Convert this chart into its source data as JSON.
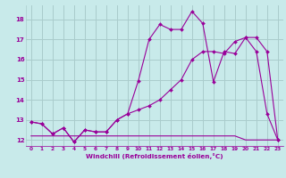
{
  "bg_color": "#c8eaea",
  "grid_color": "#aacccc",
  "line_color": "#990099",
  "xlabel": "Windchill (Refroidissement éolien,°C)",
  "xlim": [
    -0.5,
    23.5
  ],
  "ylim": [
    11.7,
    18.7
  ],
  "yticks": [
    12,
    13,
    14,
    15,
    16,
    17,
    18
  ],
  "xticks": [
    0,
    1,
    2,
    3,
    4,
    5,
    6,
    7,
    8,
    9,
    10,
    11,
    12,
    13,
    14,
    15,
    16,
    17,
    18,
    19,
    20,
    21,
    22,
    23
  ],
  "series1_x": [
    0,
    1,
    2,
    3,
    4,
    5,
    6,
    7,
    8,
    9,
    10,
    11,
    12,
    13,
    14,
    15,
    16,
    17,
    18,
    19,
    20,
    21,
    22,
    23
  ],
  "series1_y": [
    12.9,
    12.8,
    12.3,
    12.6,
    11.9,
    12.5,
    12.4,
    12.4,
    13.0,
    13.3,
    14.95,
    17.0,
    17.75,
    17.5,
    17.5,
    18.4,
    17.8,
    14.9,
    16.4,
    16.3,
    17.1,
    16.4,
    13.3,
    12.0
  ],
  "series2_x": [
    0,
    1,
    2,
    3,
    4,
    5,
    6,
    7,
    8,
    9,
    10,
    11,
    12,
    13,
    14,
    15,
    16,
    17,
    18,
    19,
    20,
    21,
    22,
    23
  ],
  "series2_y": [
    12.9,
    12.8,
    12.3,
    12.6,
    11.9,
    12.5,
    12.4,
    12.4,
    13.0,
    13.3,
    13.5,
    13.7,
    14.0,
    14.5,
    15.0,
    16.0,
    16.4,
    16.4,
    16.3,
    16.9,
    17.1,
    17.1,
    16.4,
    12.0
  ],
  "series3_x": [
    0,
    1,
    2,
    3,
    4,
    5,
    6,
    7,
    8,
    9,
    10,
    11,
    12,
    13,
    14,
    15,
    16,
    17,
    18,
    19,
    20,
    21,
    22,
    23
  ],
  "series3_y": [
    12.2,
    12.2,
    12.2,
    12.2,
    12.2,
    12.2,
    12.2,
    12.2,
    12.2,
    12.2,
    12.2,
    12.2,
    12.2,
    12.2,
    12.2,
    12.2,
    12.2,
    12.2,
    12.2,
    12.2,
    12.0,
    12.0,
    12.0,
    12.0
  ],
  "marker": "D",
  "markersize": 2.0,
  "linewidth": 0.8
}
